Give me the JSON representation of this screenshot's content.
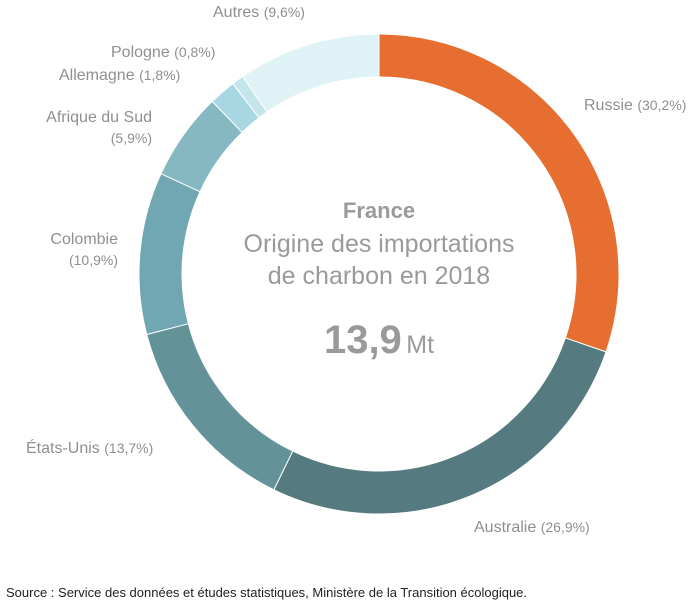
{
  "chart_data": {
    "type": "pie",
    "donut": true,
    "title": "France",
    "subtitle": [
      "Origine des importations",
      "de charbon en 2018"
    ],
    "total_value": "13,9",
    "total_unit": "Mt",
    "slices": [
      {
        "name": "Russie",
        "pct_label": "(30,2%)",
        "value": 30.2,
        "color": "#e66e30"
      },
      {
        "name": "Australie",
        "pct_label": "(26,9%)",
        "value": 26.9,
        "color": "#557a7f"
      },
      {
        "name": "États-Unis",
        "pct_label": "(13,7%)",
        "value": 13.7,
        "color": "#639399"
      },
      {
        "name": "Colombie",
        "pct_label": "(10,9%)",
        "value": 10.9,
        "color": "#71a7b2"
      },
      {
        "name": "Afrique du Sud",
        "pct_label": "(5,9%)",
        "value": 5.9,
        "color": "#86b8c2"
      },
      {
        "name": "Allemagne",
        "pct_label": "(1,8%)",
        "value": 1.8,
        "color": "#a6d7e2"
      },
      {
        "name": "Pologne",
        "pct_label": "(0,8%)",
        "value": 0.8,
        "color": "#c4e5ec"
      },
      {
        "name": "Autres",
        "pct_label": "(9,6%)",
        "value": 9.6,
        "color": "#dff2f6"
      }
    ]
  },
  "source": "Source : Service des données et études statistiques, Ministère de la Transition écologique."
}
